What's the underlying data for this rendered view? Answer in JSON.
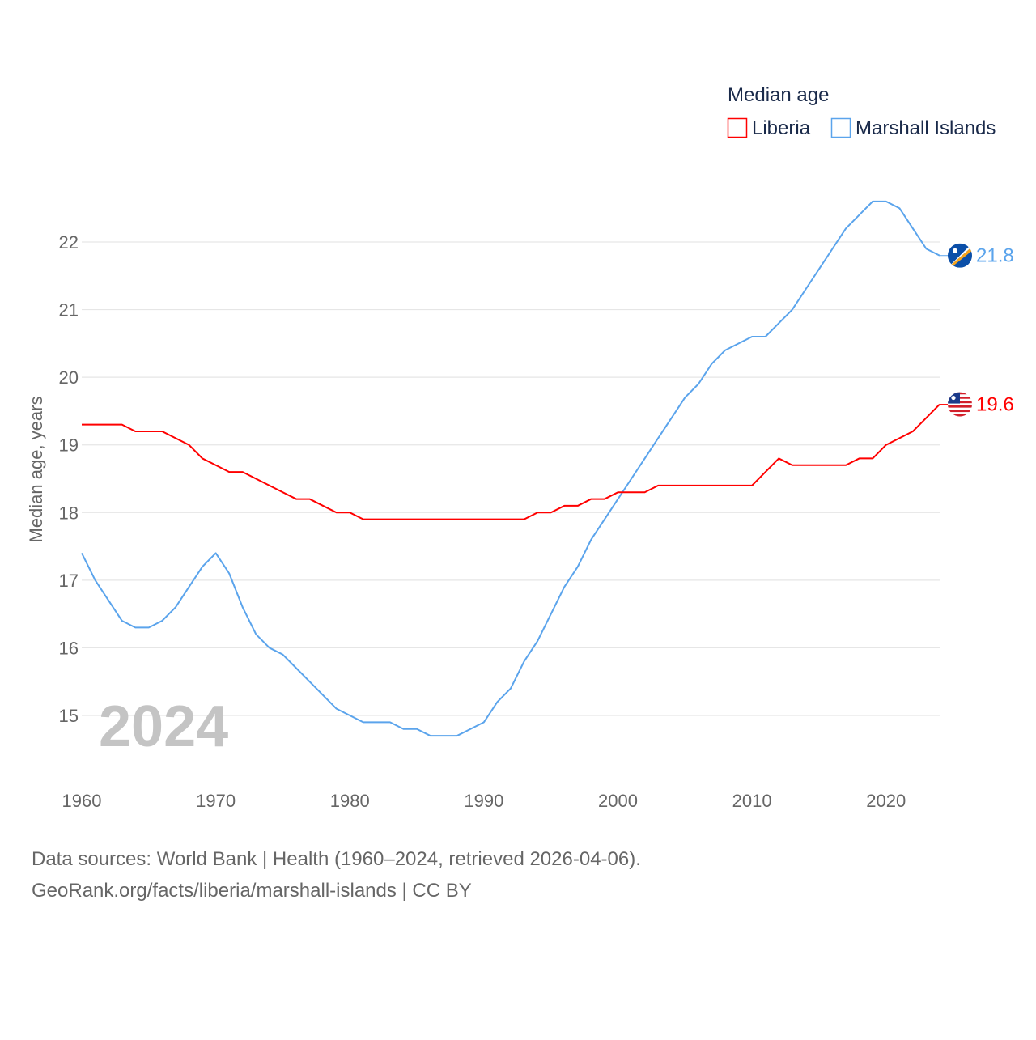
{
  "chart_data": {
    "type": "line",
    "title": "",
    "legend_title": "Median age",
    "legend_placement": "top-right",
    "ylabel": "Median age, years",
    "xlabel": "",
    "ylim": [
      14,
      23
    ],
    "xlim": [
      1960,
      2024
    ],
    "yticks": [
      15,
      16,
      17,
      18,
      19,
      20,
      21,
      22
    ],
    "xticks": [
      1960,
      1970,
      1980,
      1990,
      2000,
      2010,
      2020
    ],
    "grid": true,
    "year_overlay": "2024",
    "x": [
      1960,
      1961,
      1962,
      1963,
      1964,
      1965,
      1966,
      1967,
      1968,
      1969,
      1970,
      1971,
      1972,
      1973,
      1974,
      1975,
      1976,
      1977,
      1978,
      1979,
      1980,
      1981,
      1982,
      1983,
      1984,
      1985,
      1986,
      1987,
      1988,
      1989,
      1990,
      1991,
      1992,
      1993,
      1994,
      1995,
      1996,
      1997,
      1998,
      1999,
      2000,
      2001,
      2002,
      2003,
      2004,
      2005,
      2006,
      2007,
      2008,
      2009,
      2010,
      2011,
      2012,
      2013,
      2014,
      2015,
      2016,
      2017,
      2018,
      2019,
      2020,
      2021,
      2022,
      2023,
      2024
    ],
    "series": [
      {
        "name": "Liberia",
        "color": "#ff0000",
        "end_label": "19.6",
        "flag": "liberia-flag",
        "values": [
          19.3,
          19.3,
          19.3,
          19.3,
          19.2,
          19.2,
          19.2,
          19.1,
          19.0,
          18.8,
          18.7,
          18.6,
          18.6,
          18.5,
          18.4,
          18.3,
          18.2,
          18.2,
          18.1,
          18.0,
          18.0,
          17.9,
          17.9,
          17.9,
          17.9,
          17.9,
          17.9,
          17.9,
          17.9,
          17.9,
          17.9,
          17.9,
          17.9,
          17.9,
          18.0,
          18.0,
          18.1,
          18.1,
          18.2,
          18.2,
          18.3,
          18.3,
          18.3,
          18.4,
          18.4,
          18.4,
          18.4,
          18.4,
          18.4,
          18.4,
          18.4,
          18.6,
          18.8,
          18.7,
          18.7,
          18.7,
          18.7,
          18.7,
          18.8,
          18.8,
          19.0,
          19.1,
          19.2,
          19.4,
          19.6
        ]
      },
      {
        "name": "Marshall Islands",
        "color": "#5ba4ec",
        "end_label": "21.8",
        "flag": "marshall-islands-flag",
        "values": [
          17.4,
          17.0,
          16.7,
          16.4,
          16.3,
          16.3,
          16.4,
          16.6,
          16.9,
          17.2,
          17.4,
          17.1,
          16.6,
          16.2,
          16.0,
          15.9,
          15.7,
          15.5,
          15.3,
          15.1,
          15.0,
          14.9,
          14.9,
          14.9,
          14.8,
          14.8,
          14.7,
          14.7,
          14.7,
          14.8,
          14.9,
          15.2,
          15.4,
          15.8,
          16.1,
          16.5,
          16.9,
          17.2,
          17.6,
          17.9,
          18.2,
          18.5,
          18.8,
          19.1,
          19.4,
          19.7,
          19.9,
          20.2,
          20.4,
          20.5,
          20.6,
          20.6,
          20.8,
          21.0,
          21.3,
          21.6,
          21.9,
          22.2,
          22.4,
          22.6,
          22.6,
          22.5,
          22.2,
          21.9,
          21.8
        ]
      }
    ]
  },
  "footer": {
    "line1": "Data sources: World Bank | Health (1960–2024, retrieved 2026-04-06).",
    "line2": "GeoRank.org/facts/liberia/marshall-islands | CC BY"
  }
}
